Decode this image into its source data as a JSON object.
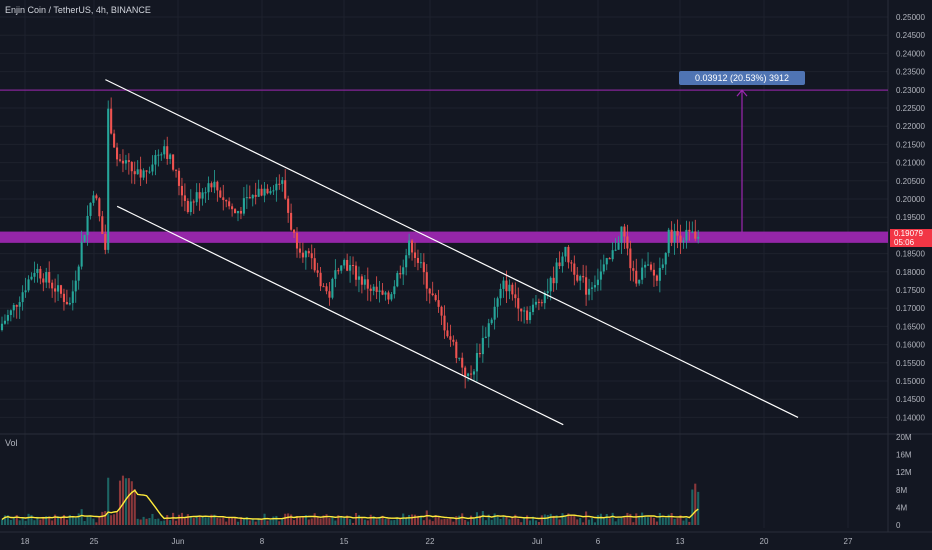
{
  "header": {
    "title": "Enjin Coin / TetherUS, 4h, BINANCE"
  },
  "volume_pane": {
    "label": "Vol"
  },
  "measure": {
    "label": "0.03912 (20.53%) 3912"
  },
  "last_price": {
    "price": "0.19079",
    "countdown": "05:06"
  },
  "colors": {
    "background": "#131722",
    "up": "#26a69a",
    "down": "#ef5350",
    "channel": "#ffffff",
    "zone": "#9c27b0",
    "ma": "#ffeb3b"
  },
  "chart_data": {
    "type": "candlestick",
    "title": "Enjin Coin / TetherUS, 4h, BINANCE",
    "x_ticks": [
      "18",
      "25",
      "Jun",
      "8",
      "15",
      "22",
      "Jul",
      "6",
      "13",
      "20",
      "27"
    ],
    "y_ticks": [
      "0.25000",
      "0.24500",
      "0.24000",
      "0.23500",
      "0.23000",
      "0.22500",
      "0.22000",
      "0.21500",
      "0.21000",
      "0.20500",
      "0.20000",
      "0.19500",
      "0.19000",
      "0.18500",
      "0.18000",
      "0.17500",
      "0.17000",
      "0.16500",
      "0.16000",
      "0.15500",
      "0.15000",
      "0.14500",
      "0.14000"
    ],
    "y_range": [
      0.138,
      0.252
    ],
    "volume_ticks": [
      "20M",
      "16M",
      "12M",
      "8M",
      "4M",
      "0"
    ],
    "volume_range": [
      0,
      20
    ],
    "last_price": 0.19079,
    "resistance_level": 0.2299,
    "support_zone": [
      0.1885,
      0.1905
    ],
    "measure": {
      "from": 0.1908,
      "to": 0.2299,
      "label": "0.03912 (20.53%) 3912"
    },
    "channel_upper": [
      {
        "date": "May 27",
        "price": 0.2328
      },
      {
        "date": "Jul 25",
        "price": 0.14
      }
    ],
    "channel_lower": [
      {
        "date": "May 28",
        "price": 0.198
      },
      {
        "date": "Jul 5",
        "price": 0.138
      }
    ],
    "price_path": [
      {
        "date": "May 15",
        "price": 0.164
      },
      {
        "date": "May 17",
        "price": 0.161
      },
      {
        "date": "May 19",
        "price": 0.169
      },
      {
        "date": "May 21",
        "price": 0.181
      },
      {
        "date": "May 22",
        "price": 0.178
      },
      {
        "date": "May 24",
        "price": 0.171
      },
      {
        "date": "May 25",
        "price": 0.188
      },
      {
        "date": "May 26",
        "price": 0.203
      },
      {
        "date": "May 27",
        "price": 0.186
      },
      {
        "date": "May 27",
        "price": 0.228
      },
      {
        "date": "May 28",
        "price": 0.211
      },
      {
        "date": "May 30",
        "price": 0.206
      },
      {
        "date": "Jun 1",
        "price": 0.215
      },
      {
        "date": "Jun 3",
        "price": 0.198
      },
      {
        "date": "Jun 5",
        "price": 0.205
      },
      {
        "date": "Jun 7",
        "price": 0.196
      },
      {
        "date": "Jun 9",
        "price": 0.202
      },
      {
        "date": "Jun 11",
        "price": 0.205
      },
      {
        "date": "Jun 12",
        "price": 0.19
      },
      {
        "date": "Jun 14",
        "price": 0.18
      },
      {
        "date": "Jun 15",
        "price": 0.173
      },
      {
        "date": "Jun 16",
        "price": 0.184
      },
      {
        "date": "Jun 18",
        "price": 0.177
      },
      {
        "date": "Jun 20",
        "price": 0.172
      },
      {
        "date": "Jun 22",
        "price": 0.188
      },
      {
        "date": "Jun 24",
        "price": 0.172
      },
      {
        "date": "Jun 26",
        "price": 0.157
      },
      {
        "date": "Jun 27",
        "price": 0.15
      },
      {
        "date": "Jun 28",
        "price": 0.16
      },
      {
        "date": "Jun 30",
        "price": 0.177
      },
      {
        "date": "Jul 2",
        "price": 0.168
      },
      {
        "date": "Jul 4",
        "price": 0.177
      },
      {
        "date": "Jul 5",
        "price": 0.186
      },
      {
        "date": "Jul 7",
        "price": 0.175
      },
      {
        "date": "Jul 9",
        "price": 0.183
      },
      {
        "date": "Jul 10",
        "price": 0.192
      },
      {
        "date": "Jul 11",
        "price": 0.178
      },
      {
        "date": "Jul 12",
        "price": 0.181
      },
      {
        "date": "Jul 13",
        "price": 0.178
      },
      {
        "date": "Jul 14",
        "price": 0.19
      }
    ]
  }
}
